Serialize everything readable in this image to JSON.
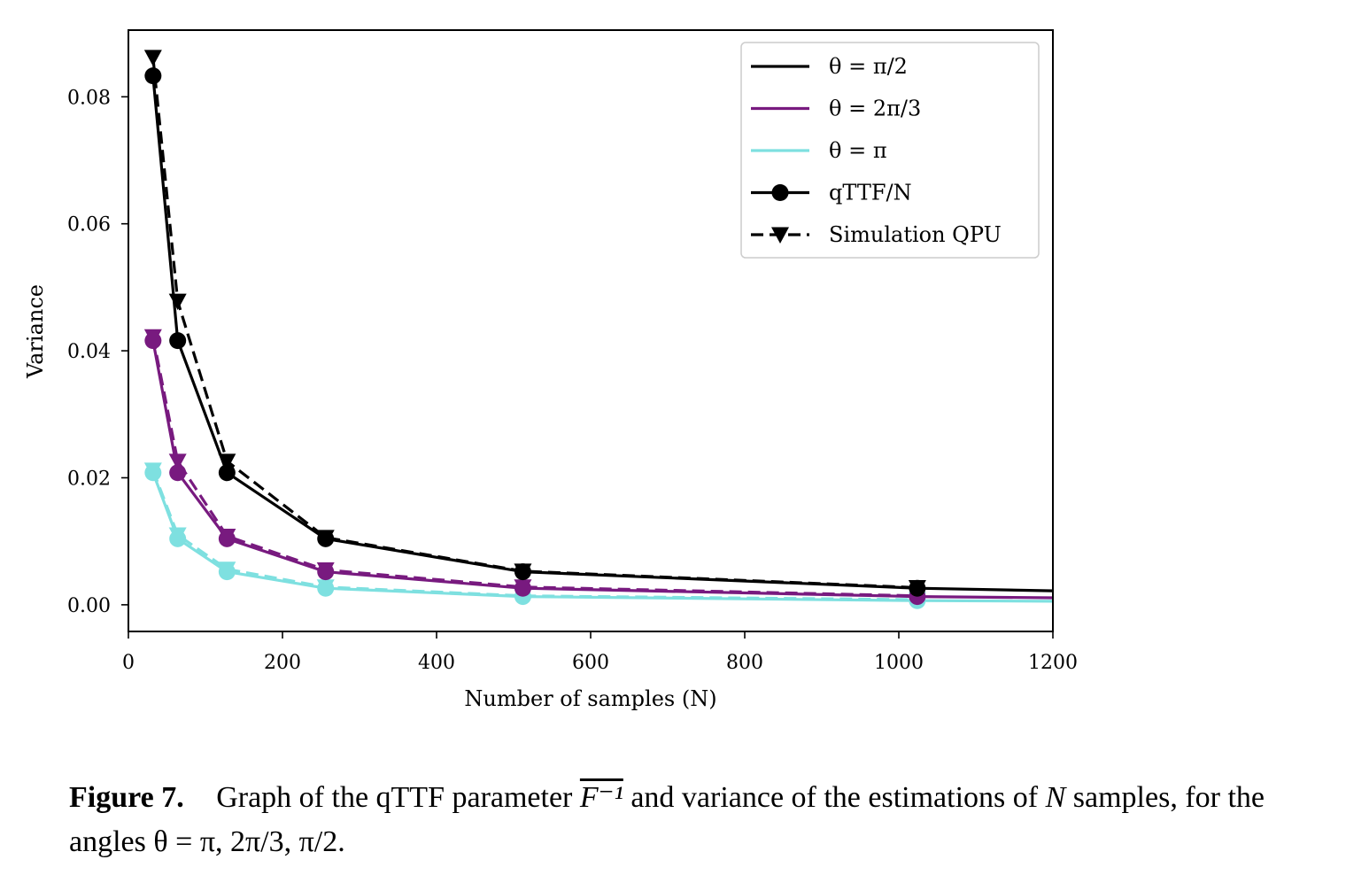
{
  "chart_data": {
    "type": "line",
    "xlabel": "Number of samples (N)",
    "ylabel": "Variance",
    "xlim": [
      0,
      1200
    ],
    "ylim": [
      -0.0042,
      0.0905
    ],
    "xticks": [
      0,
      200,
      400,
      600,
      800,
      1000,
      1200
    ],
    "xtick_labels": [
      "0",
      "200",
      "400",
      "600",
      "800",
      "1000",
      "1200"
    ],
    "yticks": [
      0.0,
      0.02,
      0.04,
      0.06,
      0.08
    ],
    "ytick_labels": [
      "0.00",
      "0.02",
      "0.04",
      "0.06",
      "0.08"
    ],
    "grid": false,
    "legend_position": "top-right",
    "legend": [
      {
        "label": "θ = π/2",
        "color": "#000000",
        "style": "solid",
        "marker": "none"
      },
      {
        "label": "θ = 2π/3",
        "color": "#781a7f",
        "style": "solid",
        "marker": "none"
      },
      {
        "label": "θ = π",
        "color": "#7ee0e0",
        "style": "solid",
        "marker": "none"
      },
      {
        "label": "qTTF/N",
        "color": "#000000",
        "style": "solid",
        "marker": "circle"
      },
      {
        "label": "Simulation QPU",
        "color": "#000000",
        "style": "dashed",
        "marker": "triangle-down"
      }
    ],
    "series": [
      {
        "theta": "π/2",
        "kind": "qTTF/N",
        "color": "#000000",
        "style": "solid",
        "marker": "circle",
        "x": [
          32,
          64,
          128,
          256,
          512,
          1024,
          1200
        ],
        "y": [
          0.0833,
          0.0416,
          0.0208,
          0.0104,
          0.0052,
          0.0026,
          0.0022
        ]
      },
      {
        "theta": "π/2",
        "kind": "Simulation QPU",
        "color": "#000000",
        "style": "dashed",
        "marker": "triangle-down",
        "x": [
          32,
          64,
          128,
          256,
          512,
          1024
        ],
        "y": [
          0.0862,
          0.0478,
          0.0226,
          0.0106,
          0.0053,
          0.0027
        ]
      },
      {
        "theta": "2π/3",
        "kind": "qTTF/N",
        "color": "#781a7f",
        "style": "solid",
        "marker": "circle",
        "x": [
          32,
          64,
          128,
          256,
          512,
          1024,
          1200
        ],
        "y": [
          0.0416,
          0.0208,
          0.0104,
          0.0052,
          0.0026,
          0.0013,
          0.0011
        ]
      },
      {
        "theta": "2π/3",
        "kind": "Simulation QPU",
        "color": "#781a7f",
        "style": "dashed",
        "marker": "triangle-down",
        "x": [
          32,
          64,
          128,
          256,
          512,
          1024
        ],
        "y": [
          0.0422,
          0.0226,
          0.0108,
          0.0055,
          0.0028,
          0.0014
        ]
      },
      {
        "theta": "π",
        "kind": "qTTF/N",
        "color": "#7ee0e0",
        "style": "solid",
        "marker": "circle",
        "x": [
          32,
          64,
          128,
          256,
          512,
          1024,
          1200
        ],
        "y": [
          0.0208,
          0.0104,
          0.0052,
          0.0026,
          0.0013,
          0.00065,
          0.00055
        ]
      },
      {
        "theta": "π",
        "kind": "Simulation QPU",
        "color": "#7ee0e0",
        "style": "dashed",
        "marker": "triangle-down",
        "x": [
          32,
          64,
          128,
          256,
          512,
          1024
        ],
        "y": [
          0.0212,
          0.011,
          0.0056,
          0.0028,
          0.0014,
          0.0008
        ]
      }
    ]
  },
  "caption": {
    "figure_number": "Figure 7.",
    "text_before": "Graph of the qTTF parameter",
    "parameter": "F⁻¹",
    "text_middle": "and variance of the estimations of",
    "variable": "N",
    "text_after": "samples, for the angles",
    "angles": "θ = π, 2π/3, π/2."
  }
}
